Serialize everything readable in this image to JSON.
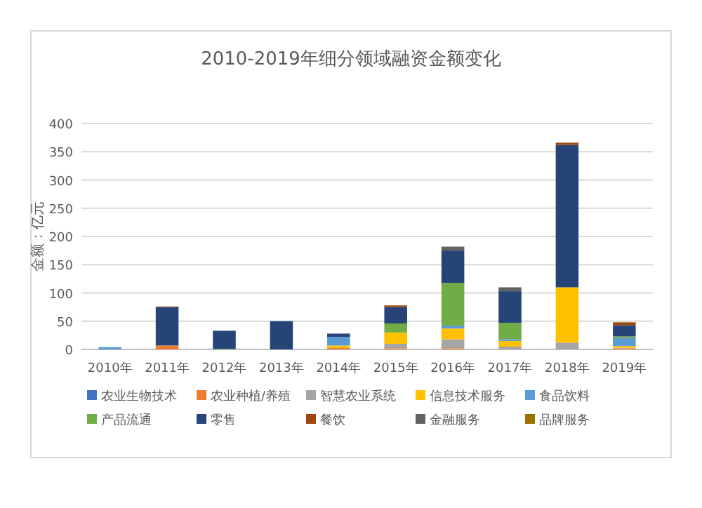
{
  "chart_data": {
    "type": "bar",
    "stacked": true,
    "title": "2010-2019年细分领域融资金额变化",
    "ylabel": "金额：亿元",
    "categories": [
      "2010年",
      "2011年",
      "2012年",
      "2013年",
      "2014年",
      "2015年",
      "2016年",
      "2017年",
      "2018年",
      "2019年"
    ],
    "ylim": [
      0,
      400
    ],
    "yticks": [
      0,
      50,
      100,
      150,
      200,
      250,
      300,
      350,
      400
    ],
    "grid": "y",
    "legend": "bottom",
    "series": [
      {
        "name": "农业生物技术",
        "color": "#4472c4",
        "values": [
          0,
          0,
          0,
          0,
          0,
          0,
          0,
          0,
          0,
          0
        ]
      },
      {
        "name": "农业种植/养殖",
        "color": "#ed7d31",
        "values": [
          0,
          7,
          0,
          0,
          3,
          2,
          2,
          0,
          0,
          2
        ]
      },
      {
        "name": "智慧农业系统",
        "color": "#a5a5a5",
        "values": [
          0,
          0,
          0,
          0,
          0,
          8,
          16,
          5,
          12,
          1
        ]
      },
      {
        "name": "信息技术服务",
        "color": "#ffc000",
        "values": [
          0,
          0,
          0,
          0,
          4,
          20,
          19,
          10,
          98,
          3
        ]
      },
      {
        "name": "食品饮料",
        "color": "#5b9bd5",
        "values": [
          4,
          0,
          0,
          0,
          15,
          0,
          5,
          3,
          0,
          14
        ]
      },
      {
        "name": "产品流通",
        "color": "#70ad47",
        "values": [
          0,
          0,
          1,
          0,
          0,
          16,
          76,
          29,
          0,
          3
        ]
      },
      {
        "name": "零售",
        "color": "#264478",
        "values": [
          0,
          68,
          32,
          50,
          6,
          29,
          57,
          56,
          252,
          20
        ]
      },
      {
        "name": "餐饮",
        "color": "#9e480e",
        "values": [
          0,
          1,
          0,
          0,
          0,
          3,
          0,
          0,
          4,
          5
        ]
      },
      {
        "name": "金融服务",
        "color": "#636363",
        "values": [
          0,
          0,
          0,
          0,
          0,
          0,
          7,
          7,
          0,
          0
        ]
      },
      {
        "name": "品牌服务",
        "color": "#997300",
        "values": [
          0,
          0,
          0,
          0,
          0,
          0,
          0,
          0,
          0,
          0
        ]
      }
    ]
  }
}
